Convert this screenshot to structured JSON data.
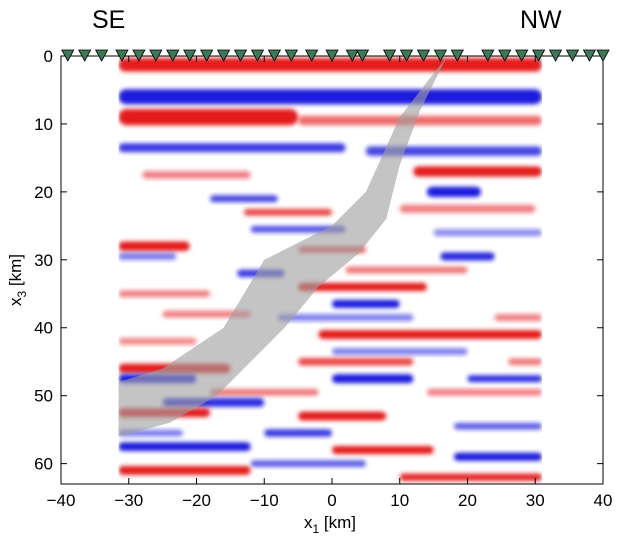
{
  "chart_data": {
    "type": "heatmap",
    "title": "",
    "corner_labels": {
      "left": "SE",
      "right": "NW"
    },
    "xlabel_main": "x",
    "xlabel_sub": "1",
    "xlabel_unit": " [km]",
    "ylabel_main": "x",
    "ylabel_sub": "3",
    "ylabel_unit": " [km]",
    "xlim": [
      -40,
      40
    ],
    "ylim": [
      0,
      63
    ],
    "y_reversed": true,
    "xticks": [
      -40,
      -30,
      -20,
      -10,
      0,
      10,
      20,
      30,
      40
    ],
    "xtick_labels": [
      "−40",
      "−30",
      "−20",
      "−10",
      "0",
      "10",
      "20",
      "30",
      "40"
    ],
    "yticks": [
      0,
      10,
      20,
      30,
      40,
      50,
      60
    ],
    "ytick_labels": [
      "0",
      "10",
      "20",
      "30",
      "40",
      "50",
      "60"
    ],
    "image_extent_x": [
      -31.5,
      31
    ],
    "colors": {
      "positive": "#e41a1c",
      "negative": "#1a1adc",
      "zero": "#ffffff",
      "station": "#3a7a55",
      "shade": "#a0a0a0"
    },
    "stations_x": [
      -39,
      -36.5,
      -34,
      -31,
      -28.5,
      -26,
      -23.5,
      -21,
      -18.5,
      -16,
      -13.5,
      -11,
      -8.5,
      -6,
      -3,
      0,
      3,
      4.5,
      8.5,
      11,
      13.5,
      16,
      18.5,
      23,
      25.5,
      28,
      30.5,
      33,
      35.5,
      38,
      40
    ],
    "band": {
      "upper_edge": [
        [
          17,
          0
        ],
        [
          10,
          9
        ],
        [
          5,
          20
        ],
        [
          0,
          25
        ],
        [
          -10,
          30
        ],
        [
          -16,
          40
        ],
        [
          -25,
          46
        ],
        [
          -31.5,
          48
        ]
      ],
      "lower_edge": [
        [
          -31.5,
          56
        ],
        [
          -24,
          54
        ],
        [
          -17,
          50
        ],
        [
          -7,
          40
        ],
        [
          -2,
          34
        ],
        [
          4,
          29
        ],
        [
          8,
          24
        ],
        [
          10,
          16
        ],
        [
          13,
          8
        ],
        [
          17,
          0
        ]
      ]
    },
    "reflectors": [
      {
        "x1": -31.5,
        "x2": 31,
        "z": 1.3,
        "t": 2,
        "p": 1
      },
      {
        "x1": -31.5,
        "x2": 31,
        "z": 6,
        "t": 2.2,
        "p": -1
      },
      {
        "x1": -31.5,
        "x2": -5,
        "z": 9,
        "t": 2.4,
        "p": 1
      },
      {
        "x1": -5,
        "x2": 31,
        "z": 9.5,
        "t": 1.4,
        "p": 0.65
      },
      {
        "x1": -31.5,
        "x2": 2,
        "z": 13.5,
        "t": 1.3,
        "p": -0.85
      },
      {
        "x1": 5,
        "x2": 31,
        "z": 14,
        "t": 1.4,
        "p": -0.8
      },
      {
        "x1": 12,
        "x2": 31,
        "z": 17,
        "t": 1.5,
        "p": 1
      },
      {
        "x1": -28,
        "x2": -12,
        "z": 17.5,
        "t": 1.1,
        "p": 0.55
      },
      {
        "x1": 14,
        "x2": 22,
        "z": 20,
        "t": 1.5,
        "p": -1
      },
      {
        "x1": -18,
        "x2": -8,
        "z": 21,
        "t": 1,
        "p": -0.8
      },
      {
        "x1": -13,
        "x2": 0,
        "z": 23,
        "t": 1,
        "p": 0.8
      },
      {
        "x1": 10,
        "x2": 30,
        "z": 22.5,
        "t": 1.2,
        "p": 0.55
      },
      {
        "x1": -12,
        "x2": 2,
        "z": 25.5,
        "t": 1,
        "p": -0.75
      },
      {
        "x1": 15,
        "x2": 31,
        "z": 26,
        "t": 1,
        "p": -0.5
      },
      {
        "x1": -31.5,
        "x2": -21,
        "z": 28,
        "t": 1.4,
        "p": 1
      },
      {
        "x1": -5,
        "x2": 5,
        "z": 28.5,
        "t": 1,
        "p": 0.7
      },
      {
        "x1": -31.5,
        "x2": -23,
        "z": 29.5,
        "t": 1,
        "p": -0.6
      },
      {
        "x1": 16,
        "x2": 24,
        "z": 29.5,
        "t": 1.2,
        "p": -0.95
      },
      {
        "x1": -14,
        "x2": -7,
        "z": 32,
        "t": 1.1,
        "p": -0.85
      },
      {
        "x1": 2,
        "x2": 20,
        "z": 31.5,
        "t": 1,
        "p": 0.6
      },
      {
        "x1": -5,
        "x2": 14,
        "z": 34,
        "t": 1.2,
        "p": 1
      },
      {
        "x1": -31.5,
        "x2": -18,
        "z": 35,
        "t": 1,
        "p": 0.55
      },
      {
        "x1": 0,
        "x2": 10,
        "z": 36.5,
        "t": 1.2,
        "p": -1
      },
      {
        "x1": -25,
        "x2": -12,
        "z": 38,
        "t": 1,
        "p": 0.55
      },
      {
        "x1": -8,
        "x2": 12,
        "z": 38.5,
        "t": 1,
        "p": -0.55
      },
      {
        "x1": 24,
        "x2": 31,
        "z": 38.5,
        "t": 1,
        "p": 0.55
      },
      {
        "x1": -2,
        "x2": 31,
        "z": 41,
        "t": 1.3,
        "p": 1
      },
      {
        "x1": -31.5,
        "x2": -20,
        "z": 42,
        "t": 1,
        "p": 0.5
      },
      {
        "x1": 0,
        "x2": 20,
        "z": 43.5,
        "t": 1,
        "p": -0.55
      },
      {
        "x1": -31.5,
        "x2": -15,
        "z": 46,
        "t": 1.4,
        "p": 1
      },
      {
        "x1": -5,
        "x2": 12,
        "z": 45,
        "t": 1.1,
        "p": 0.8
      },
      {
        "x1": 26,
        "x2": 31,
        "z": 45,
        "t": 1,
        "p": 0.6
      },
      {
        "x1": -31.5,
        "x2": -20,
        "z": 47.5,
        "t": 1.3,
        "p": -1
      },
      {
        "x1": 0,
        "x2": 12,
        "z": 47.5,
        "t": 1.3,
        "p": -1
      },
      {
        "x1": 20,
        "x2": 31,
        "z": 47.5,
        "t": 1,
        "p": -0.9
      },
      {
        "x1": -18,
        "x2": -2,
        "z": 49.5,
        "t": 1,
        "p": 0.6
      },
      {
        "x1": 14,
        "x2": 31,
        "z": 49.5,
        "t": 1,
        "p": 0.55
      },
      {
        "x1": -25,
        "x2": -10,
        "z": 51,
        "t": 1.3,
        "p": -0.9
      },
      {
        "x1": -31.5,
        "x2": -18,
        "z": 52.5,
        "t": 1.3,
        "p": 1
      },
      {
        "x1": -5,
        "x2": 8,
        "z": 53,
        "t": 1.3,
        "p": 1
      },
      {
        "x1": 18,
        "x2": 31,
        "z": 54.5,
        "t": 1,
        "p": -0.7
      },
      {
        "x1": -31.5,
        "x2": -22,
        "z": 55.5,
        "t": 1,
        "p": -0.55
      },
      {
        "x1": -10,
        "x2": 0,
        "z": 55.5,
        "t": 1.1,
        "p": -0.85
      },
      {
        "x1": -31.5,
        "x2": -12,
        "z": 57.5,
        "t": 1.3,
        "p": -1
      },
      {
        "x1": 0,
        "x2": 15,
        "z": 58,
        "t": 1.2,
        "p": 1
      },
      {
        "x1": 18,
        "x2": 31,
        "z": 59,
        "t": 1.2,
        "p": -1
      },
      {
        "x1": -12,
        "x2": 5,
        "z": 60,
        "t": 1,
        "p": -0.7
      },
      {
        "x1": -31.5,
        "x2": -12,
        "z": 61,
        "t": 1.3,
        "p": 1
      },
      {
        "x1": 10,
        "x2": 31,
        "z": 62,
        "t": 1.1,
        "p": 0.95
      }
    ]
  }
}
